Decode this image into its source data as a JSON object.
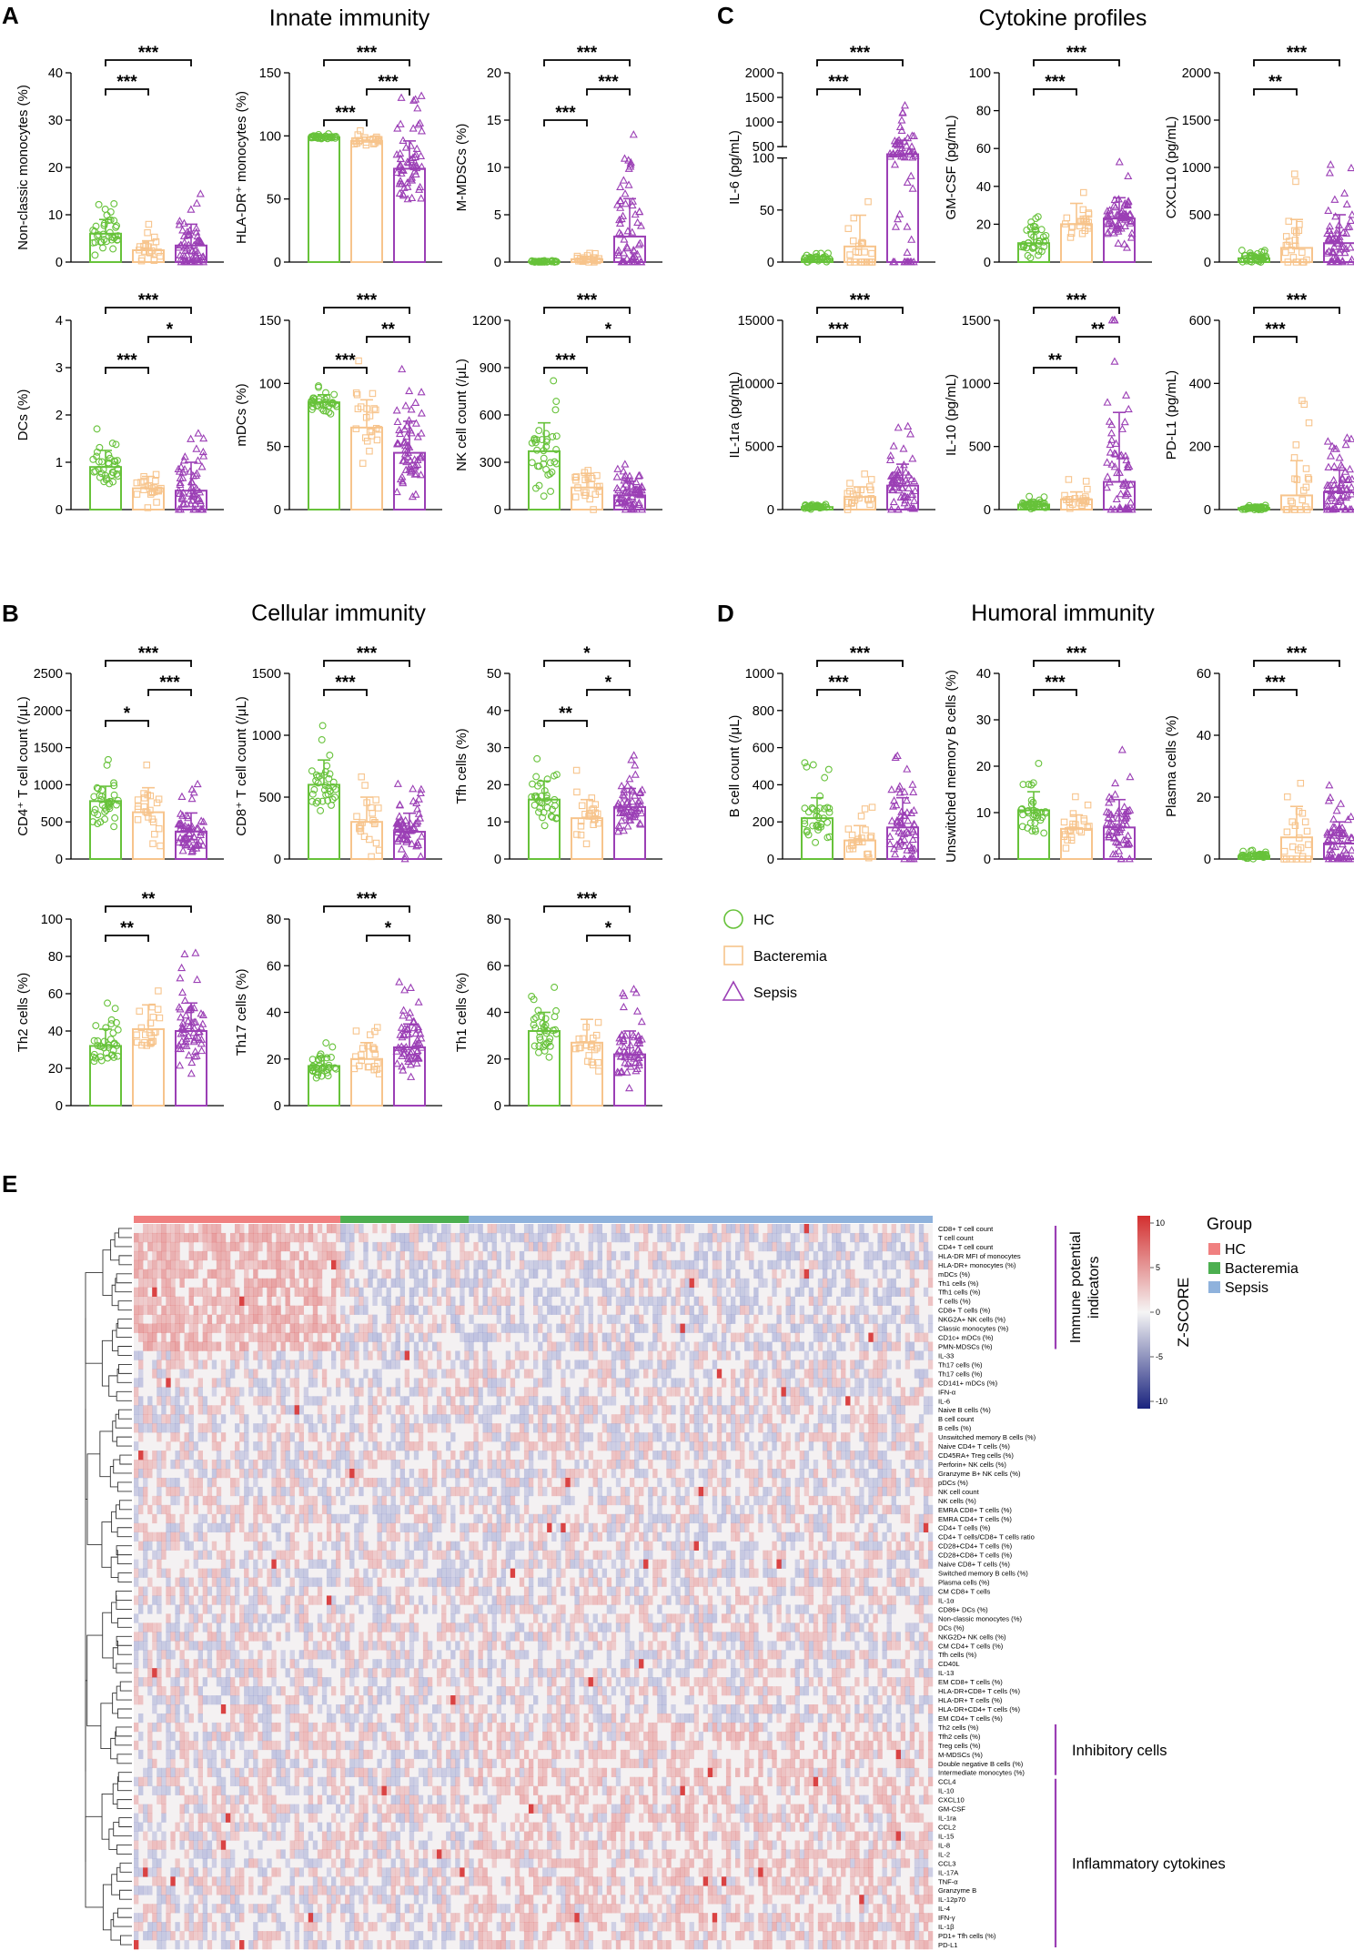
{
  "section_labels": {
    "A": "A",
    "B": "B",
    "C": "C",
    "D": "D",
    "E": "E"
  },
  "section_titles": {
    "A": "Innate immunity",
    "B": "Cellular immunity",
    "C": "Cytokine profiles",
    "D": "Humoral immunity"
  },
  "groups": [
    "HC",
    "Bacteremia",
    "Sepsis"
  ],
  "colors": {
    "HC": "#67c23a",
    "Bacteremia": "#f7c48c",
    "Sepsis": "#9b3fb5",
    "sig": "#000000",
    "hm_HC": "#f08080",
    "hm_Bact": "#4caf50",
    "hm_Sepsis": "#8fb2dc"
  },
  "legend": {
    "items": [
      {
        "label": "HC",
        "shape": "circle"
      },
      {
        "label": "Bacteremia",
        "shape": "square"
      },
      {
        "label": "Sepsis",
        "shape": "triangle"
      }
    ]
  },
  "chart_data": [
    {
      "id": "A1",
      "type": "bar",
      "ylabel": "Non-classic monocytes (%)",
      "ylim": [
        0,
        40
      ],
      "yticks": [
        "0",
        "10",
        "20",
        "30",
        "40"
      ],
      "categories": [
        "HC",
        "Bacteremia",
        "Sepsis"
      ],
      "values": [
        6,
        2.5,
        3.5
      ],
      "sd": [
        3,
        2,
        4.5
      ],
      "sig": [
        {
          "from": 0,
          "to": 1,
          "label": "***"
        },
        {
          "from": 0,
          "to": 2,
          "label": "***"
        }
      ]
    },
    {
      "id": "A2",
      "type": "bar",
      "ylabel": "HLA-DR⁺ monocytes (%)",
      "ylim": [
        0,
        150
      ],
      "yticks": [
        "0",
        "50",
        "100",
        "150"
      ],
      "categories": [
        "HC",
        "Bacteremia",
        "Sepsis"
      ],
      "values": [
        99,
        96,
        74
      ],
      "sd": [
        1,
        3,
        22
      ],
      "sig": [
        {
          "from": 0,
          "to": 1,
          "label": "***"
        },
        {
          "from": 1,
          "to": 2,
          "label": "***"
        },
        {
          "from": 0,
          "to": 2,
          "label": "***"
        }
      ]
    },
    {
      "id": "A3",
      "type": "bar",
      "ylabel": "M-MDSCs (%)",
      "ylim": [
        0,
        20
      ],
      "yticks": [
        "0",
        "5",
        "10",
        "15",
        "20"
      ],
      "categories": [
        "HC",
        "Bacteremia",
        "Sepsis"
      ],
      "values": [
        0.05,
        0.3,
        2.7
      ],
      "sd": [
        0.05,
        0.3,
        4
      ],
      "sig": [
        {
          "from": 0,
          "to": 1,
          "label": "***"
        },
        {
          "from": 1,
          "to": 2,
          "label": "***"
        },
        {
          "from": 0,
          "to": 2,
          "label": "***"
        }
      ]
    },
    {
      "id": "A4",
      "type": "bar",
      "ylabel": "DCs (%)",
      "ylim": [
        0,
        4
      ],
      "yticks": [
        "0",
        "1",
        "2",
        "3",
        "4"
      ],
      "categories": [
        "HC",
        "Bacteremia",
        "Sepsis"
      ],
      "values": [
        0.9,
        0.45,
        0.4
      ],
      "sd": [
        0.35,
        0.25,
        0.6
      ],
      "sig": [
        {
          "from": 0,
          "to": 1,
          "label": "***"
        },
        {
          "from": 1,
          "to": 2,
          "label": "*"
        },
        {
          "from": 0,
          "to": 2,
          "label": "***"
        }
      ]
    },
    {
      "id": "A5",
      "type": "bar",
      "ylabel": "mDCs (%)",
      "ylim": [
        0,
        150
      ],
      "yticks": [
        "0",
        "50",
        "100",
        "150"
      ],
      "categories": [
        "HC",
        "Bacteremia",
        "Sepsis"
      ],
      "values": [
        85,
        65,
        45
      ],
      "sd": [
        6,
        22,
        25
      ],
      "sig": [
        {
          "from": 0,
          "to": 1,
          "label": "***"
        },
        {
          "from": 1,
          "to": 2,
          "label": "**"
        },
        {
          "from": 0,
          "to": 2,
          "label": "***"
        }
      ]
    },
    {
      "id": "A6",
      "type": "bar",
      "ylabel": "NK cell count (/μL)",
      "ylim": [
        0,
        1200
      ],
      "yticks": [
        "0",
        "300",
        "600",
        "900",
        "1200"
      ],
      "categories": [
        "HC",
        "Bacteremia",
        "Sepsis"
      ],
      "values": [
        370,
        140,
        90
      ],
      "sd": [
        180,
        90,
        90
      ],
      "sig": [
        {
          "from": 0,
          "to": 1,
          "label": "***"
        },
        {
          "from": 1,
          "to": 2,
          "label": "*"
        },
        {
          "from": 0,
          "to": 2,
          "label": "***"
        }
      ]
    },
    {
      "id": "B1",
      "type": "bar",
      "ylabel": "CD4⁺ T cell count (/μL)",
      "ylim": [
        0,
        2500
      ],
      "yticks": [
        "0",
        "500",
        "1000",
        "1500",
        "2000",
        "2500"
      ],
      "categories": [
        "HC",
        "Bacteremia",
        "Sepsis"
      ],
      "values": [
        780,
        630,
        370
      ],
      "sd": [
        200,
        330,
        250
      ],
      "sig": [
        {
          "from": 0,
          "to": 1,
          "label": "*"
        },
        {
          "from": 1,
          "to": 2,
          "label": "***"
        },
        {
          "from": 0,
          "to": 2,
          "label": "***"
        }
      ]
    },
    {
      "id": "B2",
      "type": "bar",
      "ylabel": "CD8⁺ T cell count (/μL)",
      "ylim": [
        0,
        1500
      ],
      "yticks": [
        "0",
        "500",
        "1000",
        "1500"
      ],
      "categories": [
        "HC",
        "Bacteremia",
        "Sepsis"
      ],
      "values": [
        600,
        300,
        220
      ],
      "sd": [
        200,
        200,
        150
      ],
      "sig": [
        {
          "from": 0,
          "to": 1,
          "label": "***"
        },
        {
          "from": 0,
          "to": 2,
          "label": "***"
        }
      ]
    },
    {
      "id": "B3",
      "type": "bar",
      "ylabel": "Tfh cells (%)",
      "ylim": [
        0,
        50
      ],
      "yticks": [
        "0",
        "10",
        "20",
        "30",
        "40",
        "50"
      ],
      "categories": [
        "HC",
        "Bacteremia",
        "Sepsis"
      ],
      "values": [
        16,
        11,
        14
      ],
      "sd": [
        5,
        5,
        5
      ],
      "sig": [
        {
          "from": 0,
          "to": 1,
          "label": "**"
        },
        {
          "from": 1,
          "to": 2,
          "label": "*"
        },
        {
          "from": 0,
          "to": 2,
          "label": "*"
        }
      ]
    },
    {
      "id": "B4",
      "type": "bar",
      "ylabel": "Th2 cells (%)",
      "ylim": [
        0,
        100
      ],
      "yticks": [
        "0",
        "20",
        "40",
        "60",
        "80",
        "100"
      ],
      "categories": [
        "HC",
        "Bacteremia",
        "Sepsis"
      ],
      "values": [
        32,
        41,
        40
      ],
      "sd": [
        9,
        13,
        15
      ],
      "sig": [
        {
          "from": 0,
          "to": 1,
          "label": "**"
        },
        {
          "from": 0,
          "to": 2,
          "label": "**"
        }
      ]
    },
    {
      "id": "B5",
      "type": "bar",
      "ylabel": "Th17 cells (%)",
      "ylim": [
        0,
        80
      ],
      "yticks": [
        "0",
        "20",
        "40",
        "60",
        "80"
      ],
      "categories": [
        "HC",
        "Bacteremia",
        "Sepsis"
      ],
      "values": [
        17,
        20,
        25
      ],
      "sd": [
        4,
        7,
        10
      ],
      "sig": [
        {
          "from": 1,
          "to": 2,
          "label": "*"
        },
        {
          "from": 0,
          "to": 2,
          "label": "***"
        }
      ]
    },
    {
      "id": "B6",
      "type": "bar",
      "ylabel": "Th1 cells (%)",
      "ylim": [
        0,
        80
      ],
      "yticks": [
        "0",
        "20",
        "40",
        "60",
        "80"
      ],
      "categories": [
        "HC",
        "Bacteremia",
        "Sepsis"
      ],
      "values": [
        32,
        27,
        22
      ],
      "sd": [
        8,
        10,
        10
      ],
      "sig": [
        {
          "from": 1,
          "to": 2,
          "label": "*"
        },
        {
          "from": 0,
          "to": 2,
          "label": "***"
        }
      ]
    },
    {
      "id": "C1",
      "type": "bar",
      "ylabel": "IL-6 (pg/mL)",
      "broken_axis": true,
      "lower_ylim": [
        0,
        100
      ],
      "upper_ylim": [
        500,
        2000
      ],
      "yticks_lower": [
        "0",
        "50",
        "100"
      ],
      "yticks_upper": [
        "500",
        "1000",
        "1500",
        "2000"
      ],
      "categories": [
        "HC",
        "Bacteremia",
        "Sepsis"
      ],
      "values": [
        3,
        15,
        230
      ],
      "sd": [
        2,
        30,
        400
      ],
      "sig": [
        {
          "from": 0,
          "to": 1,
          "label": "***"
        },
        {
          "from": 0,
          "to": 2,
          "label": "***"
        }
      ]
    },
    {
      "id": "C2",
      "type": "bar",
      "ylabel": "GM-CSF (pg/mL)",
      "ylim": [
        0,
        100
      ],
      "yticks": [
        "0",
        "20",
        "40",
        "60",
        "80",
        "100"
      ],
      "categories": [
        "HC",
        "Bacteremia",
        "Sepsis"
      ],
      "values": [
        10,
        20,
        23
      ],
      "sd": [
        6,
        11,
        11
      ],
      "sig": [
        {
          "from": 0,
          "to": 1,
          "label": "***"
        },
        {
          "from": 0,
          "to": 2,
          "label": "***"
        }
      ]
    },
    {
      "id": "C3",
      "type": "bar",
      "ylabel": "CXCL10 (pg/mL)",
      "ylim": [
        0,
        2000
      ],
      "yticks": [
        "0",
        "500",
        "1000",
        "1500",
        "2000"
      ],
      "categories": [
        "HC",
        "Bacteremia",
        "Sepsis"
      ],
      "values": [
        40,
        150,
        200
      ],
      "sd": [
        30,
        300,
        300
      ],
      "sig": [
        {
          "from": 0,
          "to": 1,
          "label": "**"
        },
        {
          "from": 0,
          "to": 2,
          "label": "***"
        }
      ]
    },
    {
      "id": "C4",
      "type": "bar",
      "ylabel": "IL-1ra (pg/mL)",
      "ylim": [
        0,
        15000
      ],
      "yticks": [
        "0",
        "5000",
        "10000",
        "15000"
      ],
      "categories": [
        "HC",
        "Bacteremia",
        "Sepsis"
      ],
      "values": [
        200,
        1000,
        1900
      ],
      "sd": [
        100,
        800,
        1700
      ],
      "sig": [
        {
          "from": 0,
          "to": 1,
          "label": "***"
        },
        {
          "from": 0,
          "to": 2,
          "label": "***"
        }
      ]
    },
    {
      "id": "C5",
      "type": "bar",
      "ylabel": "IL-10 (pg/mL)",
      "ylim": [
        0,
        1500
      ],
      "yticks": [
        "0",
        "500",
        "1000",
        "1500"
      ],
      "categories": [
        "HC",
        "Bacteremia",
        "Sepsis"
      ],
      "values": [
        40,
        80,
        220
      ],
      "sd": [
        25,
        60,
        550
      ],
      "sig": [
        {
          "from": 0,
          "to": 1,
          "label": "**"
        },
        {
          "from": 1,
          "to": 2,
          "label": "**"
        },
        {
          "from": 0,
          "to": 2,
          "label": "***"
        }
      ]
    },
    {
      "id": "C6",
      "type": "bar",
      "ylabel": "PD-L1 (pg/mL)",
      "ylim": [
        0,
        600
      ],
      "yticks": [
        "0",
        "200",
        "400",
        "600"
      ],
      "categories": [
        "HC",
        "Bacteremia",
        "Sepsis"
      ],
      "values": [
        5,
        45,
        55
      ],
      "sd": [
        5,
        110,
        70
      ],
      "sig": [
        {
          "from": 0,
          "to": 1,
          "label": "***"
        },
        {
          "from": 0,
          "to": 2,
          "label": "***"
        }
      ]
    },
    {
      "id": "D1",
      "type": "bar",
      "ylabel": "B cell count (/μL)",
      "ylim": [
        0,
        1000
      ],
      "yticks": [
        "0",
        "200",
        "400",
        "600",
        "800",
        "1000"
      ],
      "categories": [
        "HC",
        "Bacteremia",
        "Sepsis"
      ],
      "values": [
        220,
        100,
        170
      ],
      "sd": [
        110,
        80,
        160
      ],
      "sig": [
        {
          "from": 0,
          "to": 1,
          "label": "***"
        },
        {
          "from": 0,
          "to": 2,
          "label": "***"
        }
      ]
    },
    {
      "id": "D2",
      "type": "bar",
      "ylabel": "Unswitched memory B cells (%)",
      "ylim": [
        0,
        40
      ],
      "yticks": [
        "0",
        "10",
        "20",
        "30",
        "40"
      ],
      "categories": [
        "HC",
        "Bacteremia",
        "Sepsis"
      ],
      "values": [
        10.5,
        6.5,
        6.8
      ],
      "sd": [
        4,
        3,
        6
      ],
      "sig": [
        {
          "from": 0,
          "to": 1,
          "label": "***"
        },
        {
          "from": 0,
          "to": 2,
          "label": "***"
        }
      ]
    },
    {
      "id": "D3",
      "type": "bar",
      "ylabel": "Plasma cells (%)",
      "ylim": [
        0,
        60
      ],
      "yticks": [
        "0",
        "20",
        "40",
        "60"
      ],
      "categories": [
        "HC",
        "Bacteremia",
        "Sepsis"
      ],
      "values": [
        1,
        7,
        5
      ],
      "sd": [
        0.7,
        10,
        7
      ],
      "sig": [
        {
          "from": 0,
          "to": 1,
          "label": "***"
        },
        {
          "from": 0,
          "to": 2,
          "label": "***"
        }
      ]
    },
    {
      "id": "E",
      "type": "heatmap",
      "groups": [
        {
          "name": "HC",
          "count": 45
        },
        {
          "name": "Bacteremia",
          "count": 28
        },
        {
          "name": "Sepsis",
          "count": 101
        }
      ],
      "colorbar": {
        "title": "Z-SCORE",
        "ticks": [
          "10",
          "5",
          "0",
          "-5",
          "-10"
        ],
        "range": [
          -10,
          10
        ]
      },
      "legend_title": "Group",
      "legend_items": [
        "HC",
        "Bacteremia",
        "Sepsis"
      ],
      "brackets": [
        {
          "label": "Immune potential indicators"
        },
        {
          "label": "Inhibitory cells"
        },
        {
          "label": "Inflammatory cytokines"
        }
      ],
      "rows": [
        "CD8+ T cell count",
        "T cell count",
        "CD4+ T cell count",
        "HLA-DR MFI of monocytes",
        "HLA-DR+ monocytes (%)",
        "mDCs (%)",
        "Th1 cells (%)",
        "Tfh1 cells (%)",
        "T cells (%)",
        "CD8+ T cells (%)",
        "NKG2A+ NK cells (%)",
        "Classic monocytes (%)",
        "CD1c+ mDCs (%)",
        "PMN-MDSCs (%)",
        "IL-33",
        "Th17 cells (%)",
        "Th17 cells (%)",
        "CD141+ mDCs (%)",
        "IFN-α",
        "IL-6",
        "Naive B cells (%)",
        "B cell count",
        "B cells (%)",
        "Unswitched memory B cells (%)",
        "Naive CD4+ T cells (%)",
        "CD45RA+ Treg cells (%)",
        "Perforin+ NK cells (%)",
        "Granzyme B+ NK cells (%)",
        "pDCs (%)",
        "NK cell count",
        "NK cells (%)",
        "EMRA CD8+ T cells (%)",
        "EMRA CD4+ T cells (%)",
        "CD4+ T cells (%)",
        "CD4+ T cells/CD8+ T cells ratio",
        "CD28+CD4+ T cells (%)",
        "CD28+CD8+ T cells (%)",
        "Naive CD8+ T cells (%)",
        "Switched memory B cells (%)",
        "Plasma cells (%)",
        "CM CD8+ T cells",
        "IL-1α",
        "CD86+ DCs (%)",
        "Non-classic monocytes (%)",
        "DCs (%)",
        "NKG2D+ NK cells (%)",
        "CM CD4+ T cells (%)",
        "Tfh cells (%)",
        "CD40L",
        "IL-13",
        "EM CD8+ T cells (%)",
        "HLA-DR+CD8+ T cells (%)",
        "HLA-DR+ T cells (%)",
        "HLA-DR+CD4+ T cells (%)",
        "EM CD4+ T cells (%)",
        "Th2 cells (%)",
        "Tfh2 cells (%)",
        "Treg cells (%)",
        "M-MDSCs (%)",
        "Double negative B cells (%)",
        "Intermediate monocytes (%)",
        "CCL4",
        "IL-10",
        "CXCL10",
        "GM-CSF",
        "IL-1ra",
        "CCL2",
        "IL-15",
        "IL-8",
        "IL-2",
        "CCL3",
        "IL-17A",
        "TNF-α",
        "Granzyme B",
        "IL-12p70",
        "IL-4",
        "IFN-γ",
        "IL-1β",
        "PD1+ Tfh cells (%)",
        "PD-L1"
      ]
    }
  ]
}
